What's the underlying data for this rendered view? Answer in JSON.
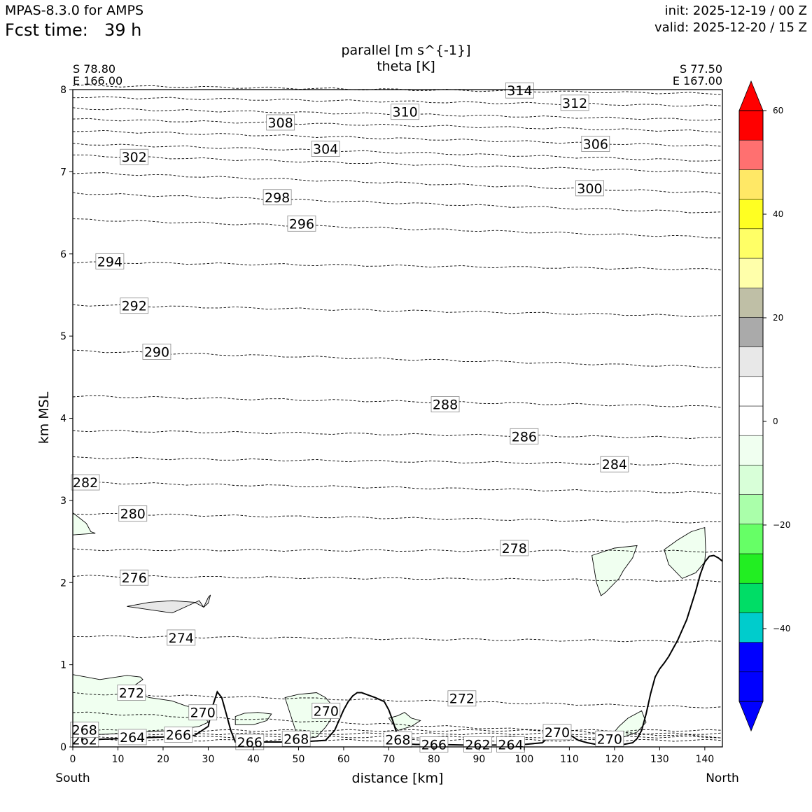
{
  "header": {
    "model": "MPAS-8.3.0 for AMPS",
    "fcst_label": "Fcst time:",
    "fcst_value": "39 h",
    "init": "init: 2025-12-19 / 00 Z",
    "valid": "valid: 2025-12-20 / 15 Z"
  },
  "chart_data": {
    "type": "cross-section",
    "title_line1": "parallel [m s^{-1}]",
    "title_line2": "theta [K]",
    "left_end": {
      "lat": "S 78.80",
      "lon": "E 166.00",
      "label": "South"
    },
    "right_end": {
      "lat": "S 77.50",
      "lon": "E 167.00",
      "label": "North"
    },
    "xlabel": "distance [km]",
    "ylabel": "km MSL",
    "xlim": [
      0,
      143.9
    ],
    "ylim": [
      0,
      8
    ],
    "x_ticks": [
      0,
      10,
      20,
      30,
      40,
      50,
      60,
      70,
      80,
      90,
      100,
      110,
      120,
      130,
      140
    ],
    "y_ticks": [
      0,
      1,
      2,
      3,
      4,
      5,
      6,
      7,
      8
    ],
    "colorbar": {
      "levels": [
        -60,
        -55,
        -50,
        -45,
        -40,
        -35,
        -30,
        -25,
        -20,
        -15,
        -10,
        -5,
        0,
        5,
        10,
        15,
        20,
        25,
        30,
        35,
        40,
        45,
        50,
        55,
        60
      ],
      "colors": [
        "#0000ff",
        "#0000ff",
        "#00cccc",
        "#00dd66",
        "#22ee22",
        "#66ff66",
        "#aaffaa",
        "#d8ffd8",
        "#f0fff0",
        "#ffffff",
        "#ffffff",
        "#e8e8e8",
        "#aaaaaa",
        "#bfbfa6",
        "#ffffaa",
        "#ffff66",
        "#ffff22",
        "#ffe866",
        "#ff7070",
        "#ff0000"
      ],
      "under": "#0000ff",
      "over": "#ff0000",
      "ticks": [
        -40,
        -20,
        0,
        20,
        40,
        60
      ]
    },
    "theta_contours": [
      {
        "value": 262,
        "z": [
          0.08,
          0.08
        ],
        "labels": [
          {
            "x": 2.6,
            "z": 0.09
          },
          {
            "x": 89.7,
            "z": 0.03
          }
        ]
      },
      {
        "value": 264,
        "z": [
          0.12,
          0.12
        ],
        "labels": [
          {
            "x": 13.2,
            "z": 0.12
          },
          {
            "x": 97.0,
            "z": 0.03
          }
        ]
      },
      {
        "value": 266,
        "z": [
          0.16,
          0.16
        ],
        "labels": [
          {
            "x": 23.4,
            "z": 0.15
          },
          {
            "x": 39.2,
            "z": 0.06
          },
          {
            "x": 80.0,
            "z": 0.03
          }
        ]
      },
      {
        "value": 268,
        "z": [
          0.2,
          0.2
        ],
        "labels": [
          {
            "x": 2.6,
            "z": 0.21
          },
          {
            "x": 49.5,
            "z": 0.1
          },
          {
            "x": 72.0,
            "z": 0.09
          }
        ]
      },
      {
        "value": 270,
        "z": [
          0.42,
          0.12
        ],
        "labels": [
          {
            "x": 28.8,
            "z": 0.42
          },
          {
            "x": 56.1,
            "z": 0.44
          },
          {
            "x": 107.3,
            "z": 0.18
          },
          {
            "x": 118.9,
            "z": 0.1
          }
        ]
      },
      {
        "value": 272,
        "z": [
          0.65,
          0.48
        ],
        "labels": [
          {
            "x": 13.0,
            "z": 0.66
          },
          {
            "x": 86.2,
            "z": 0.59
          }
        ]
      },
      {
        "value": 274,
        "z": [
          1.35,
          1.28
        ],
        "labels": [
          {
            "x": 24.0,
            "z": 1.33
          }
        ]
      },
      {
        "value": 276,
        "z": [
          2.08,
          2.02
        ],
        "labels": [
          {
            "x": 13.6,
            "z": 2.06
          }
        ]
      },
      {
        "value": 278,
        "z": [
          2.4,
          2.38
        ],
        "labels": [
          {
            "x": 97.8,
            "z": 2.42
          }
        ]
      },
      {
        "value": 280,
        "z": [
          2.84,
          2.73
        ],
        "labels": [
          {
            "x": 13.3,
            "z": 2.84
          }
        ]
      },
      {
        "value": 282,
        "z": [
          3.22,
          3.09
        ],
        "labels": [
          {
            "x": 2.8,
            "z": 3.22
          }
        ]
      },
      {
        "value": 284,
        "z": [
          3.52,
          3.43
        ],
        "labels": [
          {
            "x": 120.0,
            "z": 3.44
          }
        ]
      },
      {
        "value": 286,
        "z": [
          3.85,
          3.76
        ],
        "labels": [
          {
            "x": 100.0,
            "z": 3.78
          }
        ]
      },
      {
        "value": 288,
        "z": [
          4.27,
          4.14
        ],
        "labels": [
          {
            "x": 82.5,
            "z": 4.17
          }
        ]
      },
      {
        "value": 290,
        "z": [
          4.82,
          4.62
        ],
        "labels": [
          {
            "x": 18.6,
            "z": 4.81
          }
        ]
      },
      {
        "value": 292,
        "z": [
          5.38,
          5.24
        ],
        "labels": [
          {
            "x": 13.6,
            "z": 5.37
          }
        ]
      },
      {
        "value": 294,
        "z": [
          5.9,
          5.81
        ],
        "labels": [
          {
            "x": 8.2,
            "z": 5.91
          }
        ]
      },
      {
        "value": 296,
        "z": [
          6.42,
          6.2
        ],
        "labels": [
          {
            "x": 50.7,
            "z": 6.37
          }
        ]
      },
      {
        "value": 298,
        "z": [
          6.74,
          6.5
        ],
        "labels": [
          {
            "x": 45.3,
            "z": 6.69
          }
        ]
      },
      {
        "value": 300,
        "z": [
          6.99,
          6.74
        ],
        "labels": [
          {
            "x": 114.5,
            "z": 6.8
          }
        ]
      },
      {
        "value": 302,
        "z": [
          7.2,
          6.99
        ],
        "labels": [
          {
            "x": 13.6,
            "z": 7.18
          }
        ]
      },
      {
        "value": 304,
        "z": [
          7.34,
          7.13
        ],
        "labels": [
          {
            "x": 56.0,
            "z": 7.28
          }
        ]
      },
      {
        "value": 306,
        "z": [
          7.5,
          7.31
        ],
        "labels": [
          {
            "x": 115.8,
            "z": 7.34
          }
        ]
      },
      {
        "value": 308,
        "z": [
          7.64,
          7.49
        ],
        "labels": [
          {
            "x": 46.0,
            "z": 7.6
          }
        ]
      },
      {
        "value": 310,
        "z": [
          7.77,
          7.63
        ],
        "labels": [
          {
            "x": 73.6,
            "z": 7.73
          }
        ]
      },
      {
        "value": 312,
        "z": [
          7.91,
          7.8
        ],
        "labels": [
          {
            "x": 111.2,
            "z": 7.84
          }
        ]
      },
      {
        "value": 314,
        "z": [
          8.05,
          7.95
        ],
        "labels": [
          {
            "x": 99.0,
            "z": 7.99
          }
        ]
      }
    ],
    "terrain": {
      "x": [
        0,
        5,
        10,
        20,
        27,
        30,
        31,
        32,
        33,
        34,
        35,
        36,
        40,
        50,
        56,
        58,
        60,
        61,
        62,
        63,
        64,
        65,
        67,
        69,
        70,
        71,
        72,
        73,
        76,
        80,
        90,
        100,
        104,
        106,
        108,
        110,
        112,
        114,
        116,
        120,
        122,
        124,
        125,
        126,
        127,
        128,
        129,
        130,
        131,
        132,
        134,
        136,
        138,
        139,
        140,
        141,
        142,
        143,
        143.9
      ],
      "z": [
        0.08,
        0.09,
        0.1,
        0.12,
        0.14,
        0.25,
        0.5,
        0.67,
        0.6,
        0.4,
        0.2,
        0.06,
        0.06,
        0.06,
        0.08,
        0.2,
        0.45,
        0.55,
        0.62,
        0.66,
        0.66,
        0.64,
        0.6,
        0.55,
        0.45,
        0.3,
        0.12,
        0.04,
        0.03,
        0.03,
        0.02,
        0.03,
        0.05,
        0.15,
        0.2,
        0.15,
        0.08,
        0.05,
        0.03,
        0.02,
        0.03,
        0.05,
        0.1,
        0.2,
        0.4,
        0.65,
        0.85,
        0.95,
        1.02,
        1.1,
        1.3,
        1.55,
        1.9,
        2.1,
        2.25,
        2.32,
        2.33,
        2.3,
        2.26
      ]
    },
    "shaded_regions": [
      {
        "level": "0 to -5",
        "x": [
          0,
          3,
          4,
          5,
          0
        ],
        "z": [
          2.85,
          2.72,
          2.62,
          2.6,
          2.58
        ]
      },
      {
        "level": "5 to 10",
        "x": [
          12,
          17,
          22,
          27,
          29,
          30,
          30.5,
          30,
          29,
          28,
          26,
          22,
          12
        ],
        "z": [
          1.71,
          1.76,
          1.78,
          1.76,
          1.7,
          1.75,
          1.85,
          1.82,
          1.7,
          1.78,
          1.73,
          1.63,
          1.71
        ]
      },
      {
        "level": "0 to -5",
        "x": [
          0,
          6,
          12,
          15,
          15.5,
          14,
          12,
          17,
          22,
          25,
          28,
          30,
          28,
          22,
          15,
          10,
          5,
          2,
          0
        ],
        "z": [
          0.88,
          0.82,
          0.87,
          0.85,
          0.82,
          0.76,
          0.68,
          0.6,
          0.56,
          0.5,
          0.46,
          0.3,
          0.25,
          0.2,
          0.18,
          0.16,
          0.15,
          0.14,
          0.13
        ]
      },
      {
        "level": "0 to -5",
        "x": [
          36,
          38,
          41,
          44,
          43,
          40,
          36
        ],
        "z": [
          0.37,
          0.41,
          0.42,
          0.4,
          0.32,
          0.27,
          0.27
        ]
      },
      {
        "level": "0 to -5",
        "x": [
          47,
          50,
          54,
          56,
          58,
          57,
          56,
          54,
          50,
          47
        ],
        "z": [
          0.6,
          0.64,
          0.66,
          0.6,
          0.47,
          0.32,
          0.24,
          0.12,
          0.09,
          0.6
        ]
      },
      {
        "level": "0 to -5",
        "x": [
          70,
          72,
          73.5,
          75,
          77,
          75,
          72,
          70
        ],
        "z": [
          0.35,
          0.38,
          0.42,
          0.35,
          0.32,
          0.25,
          0.2,
          0.35
        ]
      },
      {
        "level": "0 to -5",
        "x": [
          119,
          121,
          123,
          126,
          127,
          125,
          122,
          120,
          119
        ],
        "z": [
          0.12,
          0.25,
          0.35,
          0.44,
          0.3,
          0.18,
          0.12,
          0.08,
          0.12
        ]
      },
      {
        "level": "0 to -5",
        "x": [
          115,
          120,
          125,
          124,
          122,
          121,
          118,
          117,
          116,
          115
        ],
        "z": [
          2.33,
          2.42,
          2.45,
          2.3,
          2.15,
          2.05,
          1.88,
          1.84,
          2.0,
          2.33
        ]
      },
      {
        "level": "0 to -5",
        "x": [
          131,
          134,
          137,
          140,
          140.2,
          140,
          138,
          135,
          132,
          131
        ],
        "z": [
          2.4,
          2.52,
          2.62,
          2.67,
          2.4,
          2.25,
          2.12,
          2.05,
          2.22,
          2.4
        ]
      }
    ]
  }
}
